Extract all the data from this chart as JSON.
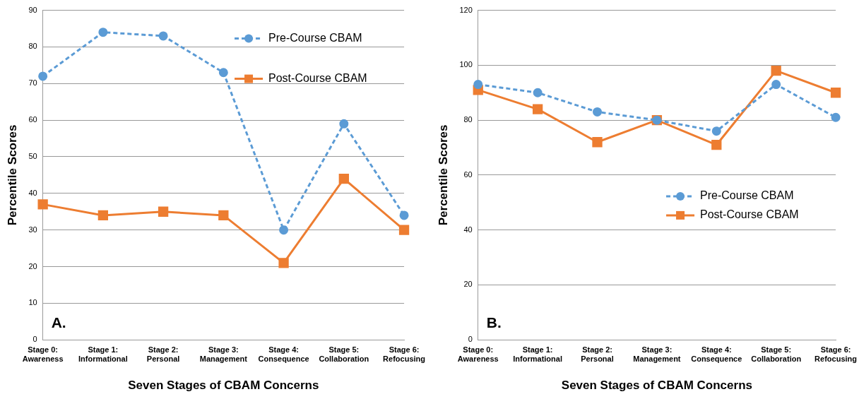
{
  "chart_data": [
    {
      "type": "line",
      "xlabel": "Seven Stages of CBAM Concerns",
      "ylabel": "Percentile Scores",
      "categories": [
        "Stage 0: Awareness",
        "Stage 1: Informational",
        "Stage 2: Personal",
        "Stage 3: Management",
        "Stage 4: Consequence",
        "Stage 5: Collaboration",
        "Stage 6: Refocusing"
      ],
      "series": [
        {
          "name": "Pre-Course CBAM",
          "color": "#5b9bd5",
          "marker": "circle",
          "line_style": "dashed",
          "values": [
            72,
            84,
            83,
            73,
            30,
            59,
            34
          ]
        },
        {
          "name": "Post-Course CBAM",
          "color": "#ed7d31",
          "marker": "square",
          "line_style": "solid",
          "values": [
            37,
            34,
            35,
            34,
            21,
            44,
            30
          ]
        }
      ],
      "ylim": [
        0,
        90
      ],
      "yticks": [
        0,
        10,
        20,
        30,
        40,
        50,
        60,
        70,
        80,
        90
      ],
      "grid": "y",
      "legend": "top right",
      "annotations": [
        "A."
      ]
    },
    {
      "type": "line",
      "xlabel": "Seven Stages of CBAM Concerns",
      "ylabel": "Percentile Scores",
      "categories": [
        "Stage 0: Awareness",
        "Stage 1: Informational",
        "Stage 2: Personal",
        "Stage 3: Management",
        "Stage 4: Consequence",
        "Stage 5: Collaboration",
        "Stage 6: Refocusing"
      ],
      "series": [
        {
          "name": "Pre-Course CBAM",
          "color": "#5b9bd5",
          "marker": "circle",
          "line_style": "dashed",
          "values": [
            93,
            90,
            83,
            80,
            76,
            93,
            81
          ]
        },
        {
          "name": "Post-Course CBAM",
          "color": "#ed7d31",
          "marker": "square",
          "line_style": "solid",
          "values": [
            91,
            84,
            72,
            80,
            71,
            98,
            90
          ]
        }
      ],
      "ylim": [
        0,
        120
      ],
      "yticks": [
        0,
        20,
        40,
        60,
        80,
        100,
        120
      ],
      "grid": "y",
      "legend": "right",
      "annotations": [
        "B."
      ]
    }
  ]
}
